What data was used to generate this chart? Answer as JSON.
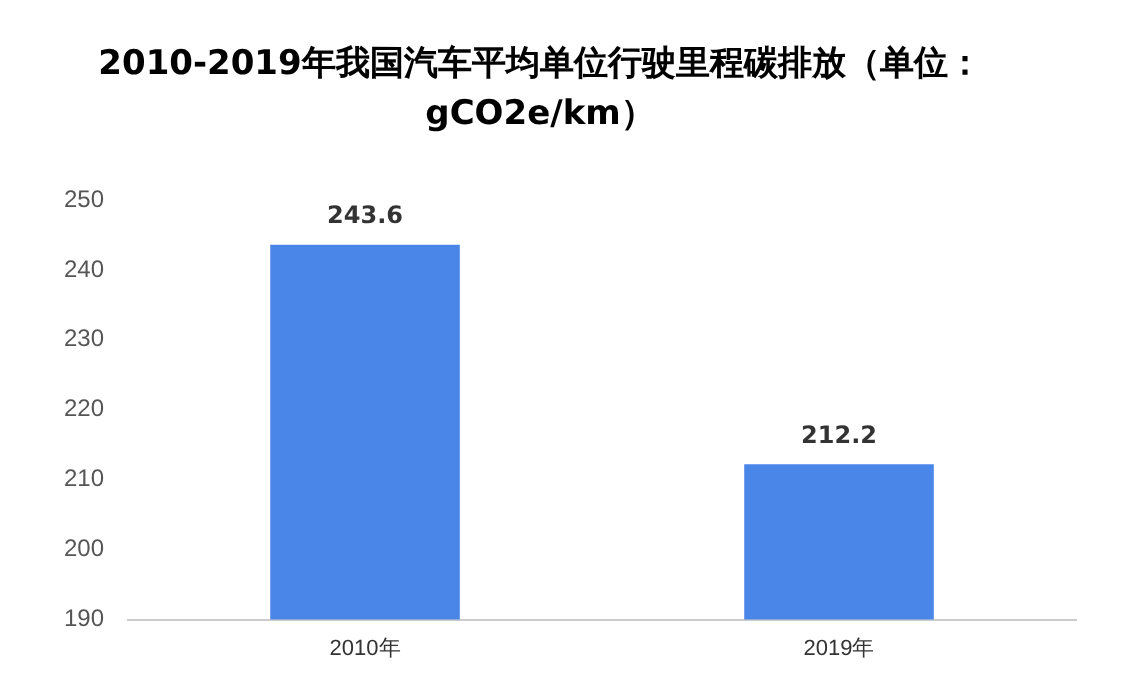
{
  "chart_data": {
    "type": "bar",
    "title": "2010-2019年我国汽车平均单位行驶里程碳排放（单位：gCO2e/km）",
    "categories": [
      "2010年",
      "2019年"
    ],
    "values": [
      243.6,
      212.2
    ],
    "color": "#4a86e8",
    "ylim": [
      190,
      250
    ],
    "yticks": [
      190,
      200,
      210,
      220,
      230,
      240,
      250
    ],
    "grid": false,
    "legend": false,
    "data_labels": true
  }
}
